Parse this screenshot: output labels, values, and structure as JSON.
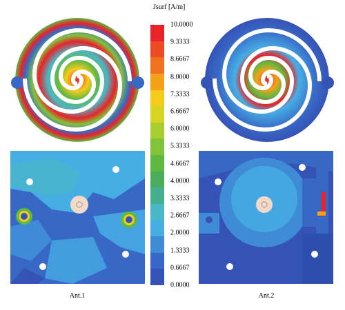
{
  "legend": {
    "title": "Jsurf [A/m]",
    "ticks": [
      "10.0000",
      "9.3333",
      "8.6667",
      "8.0000",
      "7.3333",
      "6.6667",
      "6.0000",
      "5.3333",
      "4.6667",
      "4.0000",
      "3.3333",
      "2.6667",
      "2.0000",
      "1.3333",
      "0.6667",
      "0.0000"
    ],
    "colors": [
      "#e8232a",
      "#ec4a24",
      "#f0741f",
      "#f3a21a",
      "#f5cc1c",
      "#d7d425",
      "#a9ce30",
      "#82c33a",
      "#5fb842",
      "#49ad5b",
      "#47ae8f",
      "#4ab7c6",
      "#47aee4",
      "#3f8bd6",
      "#3868c5",
      "#3553b6"
    ]
  },
  "captions": {
    "ant1": "Ant.1",
    "ant2": "Ant.2"
  }
}
